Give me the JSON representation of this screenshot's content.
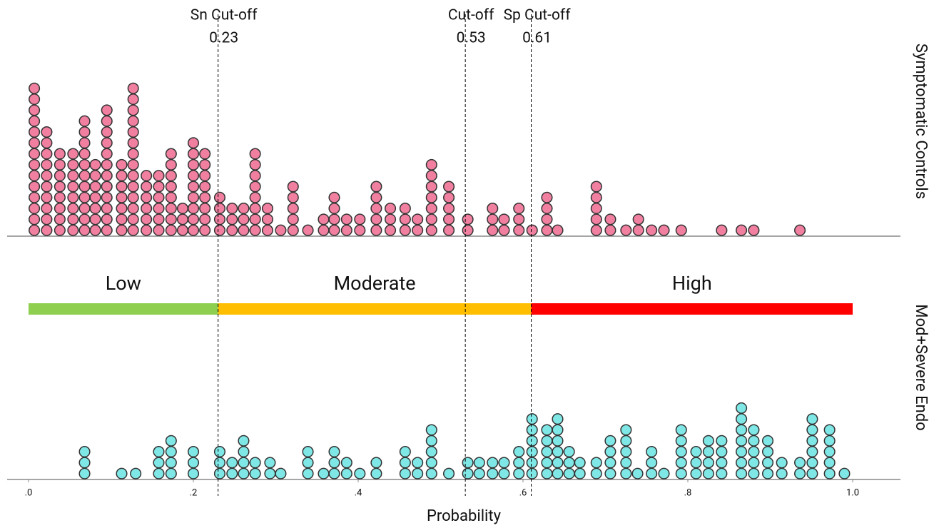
{
  "chart_data": {
    "type": "dot",
    "xlabel": "Probability",
    "xlim": [
      0,
      1
    ],
    "xticks": [
      {
        "value": 0,
        "label": ".0"
      },
      {
        "value": 0.2,
        "label": ".2"
      },
      {
        "value": 0.4,
        "label": ".4"
      },
      {
        "value": 0.6,
        "label": ".6"
      },
      {
        "value": 0.8,
        "label": ".8"
      },
      {
        "value": 1,
        "label": "1.0"
      }
    ],
    "cutoffs": [
      {
        "name": "Sn Cut-off",
        "value": 0.23
      },
      {
        "name": "Cut-off",
        "value": 0.53
      },
      {
        "name": "Sp Cut-off",
        "value": 0.61
      }
    ],
    "bands": [
      {
        "name": "Low",
        "from": 0,
        "to": 0.23,
        "color": "#8fcf4f"
      },
      {
        "name": "Moderate",
        "from": 0.23,
        "to": 0.61,
        "color": "#ffbf00"
      },
      {
        "name": "High",
        "from": 0.61,
        "to": 1,
        "color": "#ff0000"
      }
    ],
    "series": [
      {
        "name": "Symptomatic Controls",
        "color": "#f07fa0",
        "x": [
          0.007,
          0.022,
          0.038,
          0.054,
          0.068,
          0.081,
          0.095,
          0.113,
          0.127,
          0.143,
          0.158,
          0.173,
          0.187,
          0.2,
          0.214,
          0.232,
          0.247,
          0.261,
          0.275,
          0.29,
          0.306,
          0.321,
          0.339,
          0.358,
          0.371,
          0.386,
          0.402,
          0.422,
          0.439,
          0.457,
          0.472,
          0.489,
          0.51,
          0.533,
          0.563,
          0.577,
          0.595,
          0.611,
          0.629,
          0.642,
          0.689,
          0.706,
          0.725,
          0.74,
          0.756,
          0.771,
          0.792,
          0.841,
          0.865,
          0.88,
          0.936
        ],
        "counts": [
          14,
          10,
          8,
          8,
          11,
          7,
          12,
          7,
          14,
          6,
          6,
          8,
          3,
          9,
          8,
          4,
          3,
          3,
          8,
          3,
          1,
          5,
          1,
          2,
          4,
          2,
          2,
          5,
          3,
          3,
          2,
          7,
          5,
          2,
          3,
          2,
          3,
          1,
          4,
          1,
          5,
          2,
          1,
          2,
          1,
          1,
          1,
          1,
          1,
          1,
          1
        ]
      },
      {
        "name": "Mod+Severe Endo",
        "color": "#7fe8e6",
        "x": [
          0.068,
          0.113,
          0.13,
          0.158,
          0.173,
          0.2,
          0.232,
          0.247,
          0.261,
          0.275,
          0.293,
          0.306,
          0.339,
          0.358,
          0.371,
          0.386,
          0.402,
          0.422,
          0.457,
          0.472,
          0.489,
          0.51,
          0.533,
          0.547,
          0.563,
          0.577,
          0.595,
          0.611,
          0.629,
          0.642,
          0.656,
          0.669,
          0.689,
          0.706,
          0.725,
          0.739,
          0.756,
          0.771,
          0.792,
          0.81,
          0.825,
          0.841,
          0.865,
          0.88,
          0.897,
          0.914,
          0.936,
          0.951,
          0.972,
          0.99
        ],
        "counts": [
          3,
          1,
          1,
          3,
          4,
          3,
          3,
          2,
          4,
          2,
          2,
          1,
          3,
          1,
          3,
          2,
          1,
          2,
          3,
          2,
          5,
          1,
          2,
          2,
          2,
          2,
          3,
          6,
          5,
          6,
          3,
          2,
          2,
          4,
          5,
          1,
          3,
          1,
          5,
          3,
          4,
          4,
          7,
          5,
          4,
          2,
          2,
          6,
          5,
          1
        ]
      }
    ]
  }
}
